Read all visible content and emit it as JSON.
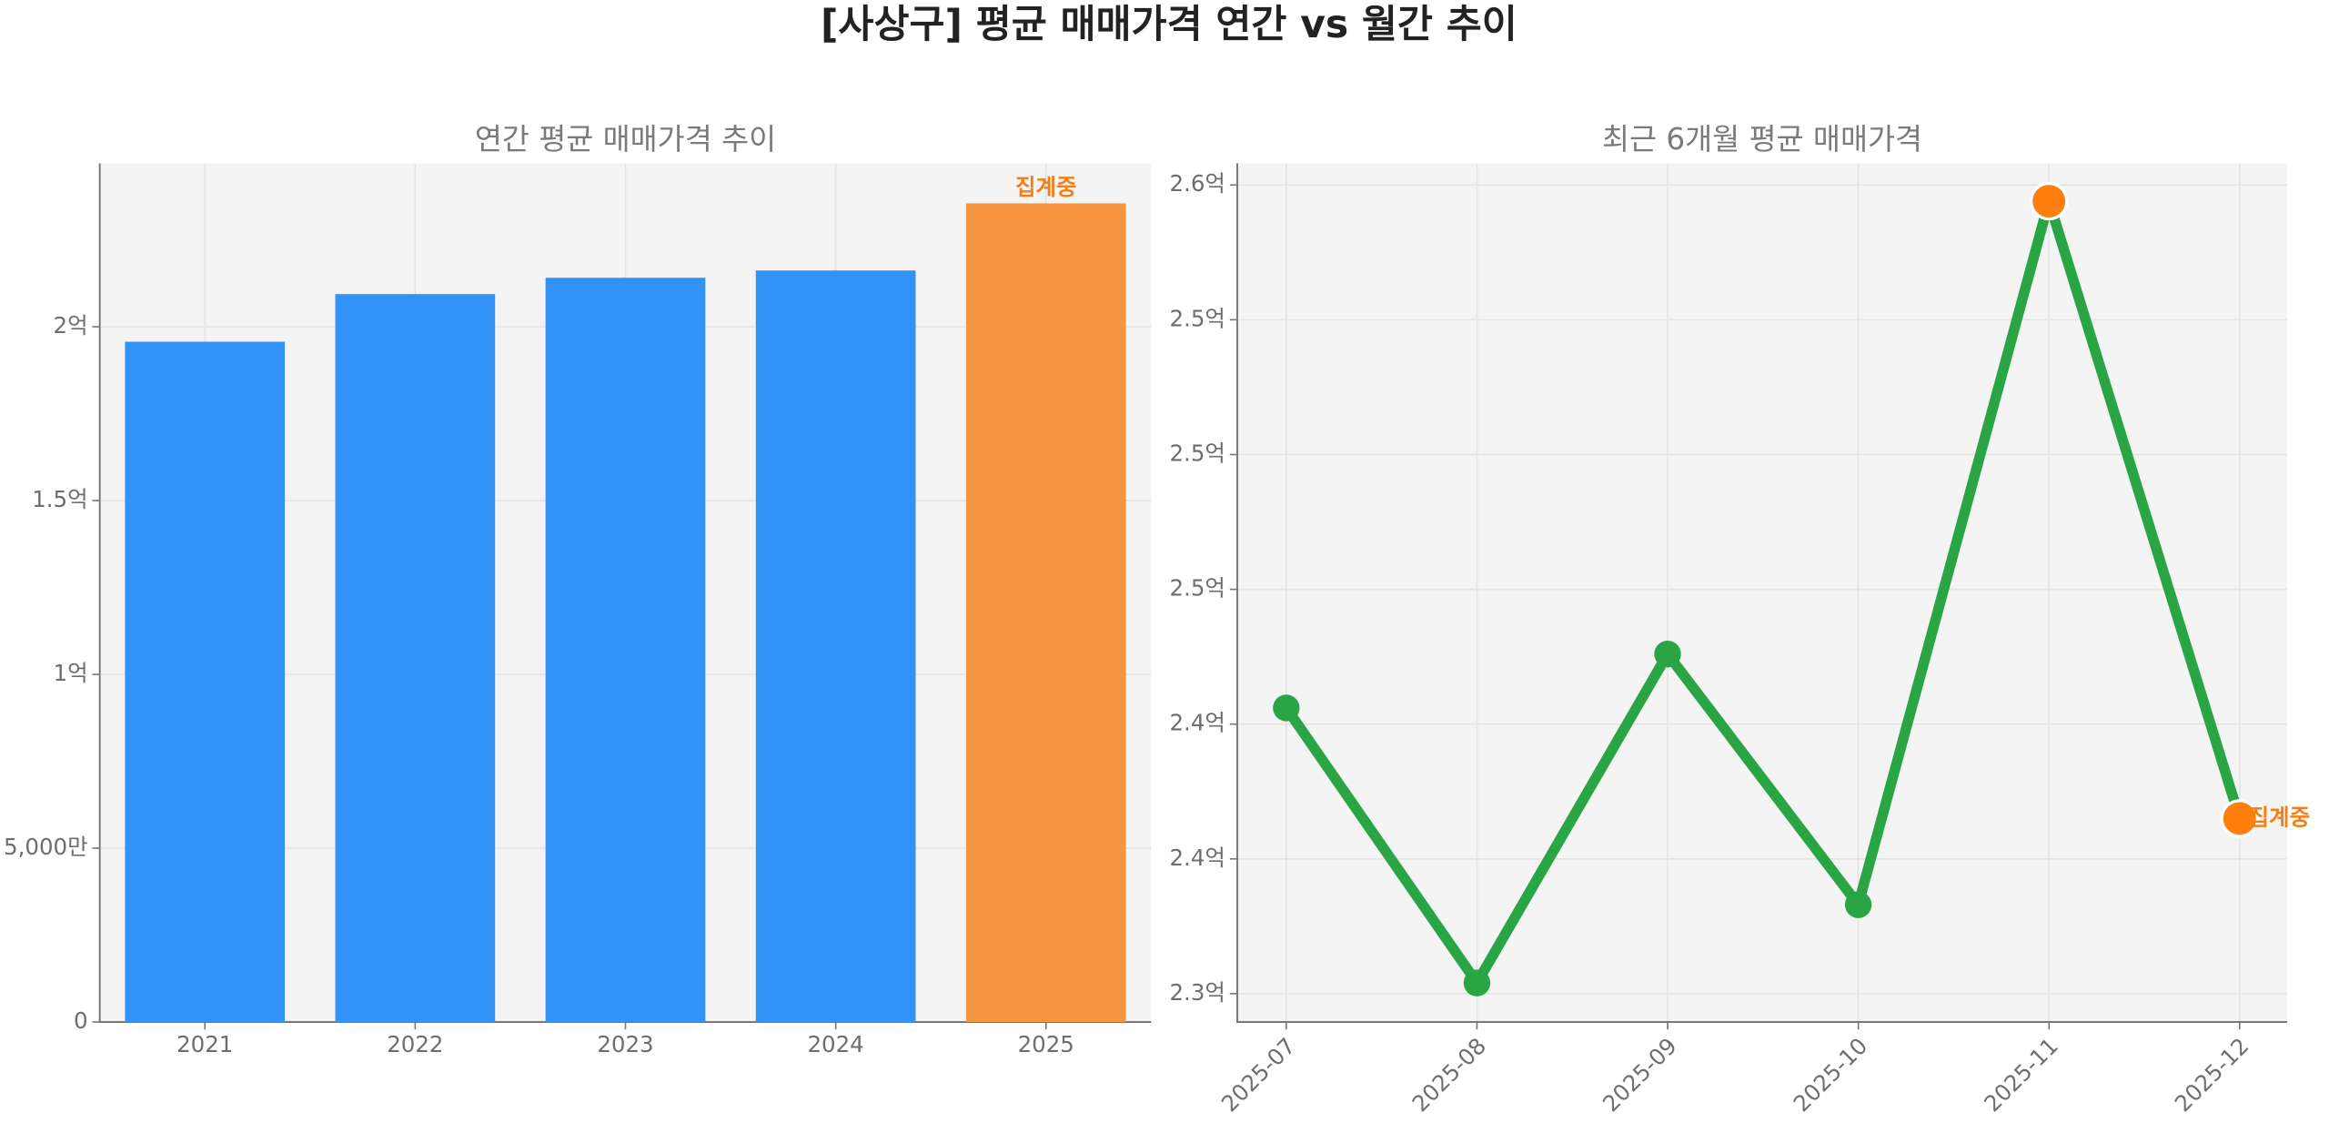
{
  "title": "[사상구] 평균 매매가격 연간 vs 월간 추이",
  "chart_data": [
    {
      "type": "bar",
      "title": "연간 평균 매매가격 추이",
      "categories": [
        "2021",
        "2022",
        "2023",
        "2024",
        "2025"
      ],
      "values": [
        195700000,
        209400000,
        214100000,
        216200000,
        235500000
      ],
      "colors": [
        "#3193f8",
        "#3193f8",
        "#3193f8",
        "#3193f8",
        "#f8963f"
      ],
      "annotation": "집계중",
      "ylim": [
        0,
        247000000
      ],
      "yticks": [
        0,
        {
          "value": 50000000,
          "label": "5,000만"
        },
        {
          "value": 100000000,
          "label": "1억"
        },
        {
          "value": 150000000,
          "label": "1.5억"
        },
        {
          "value": 200000000,
          "label": "2억"
        }
      ],
      "grid": true
    },
    {
      "type": "line",
      "title": "최근 6개월 평균 매매가격",
      "categories": [
        "2025-07",
        "2025-08",
        "2025-09",
        "2025-10",
        "2025-11",
        "2025-12"
      ],
      "values": [
        240600000,
        230400000,
        242600000,
        233300000,
        259400000,
        236500000
      ],
      "color": "#2aa544",
      "marker_colors": [
        "#2aa544",
        "#2aa544",
        "#2aa544",
        "#2aa544",
        "#ff7f0e",
        "#ff7f0e"
      ],
      "annotation": "집계중",
      "ylim": [
        228950000,
        260800000
      ],
      "yticks": [
        {
          "value": 230000000,
          "label": "2.3억"
        },
        {
          "value": 235000000,
          "label": "2.4억"
        },
        {
          "value": 240000000,
          "label": "2.4억"
        },
        {
          "value": 245000000,
          "label": "2.5억"
        },
        {
          "value": 250000000,
          "label": "2.5억"
        },
        {
          "value": 255000000,
          "label": "2.5억"
        },
        {
          "value": 260000000,
          "label": "2.6억"
        }
      ],
      "grid": true
    }
  ]
}
